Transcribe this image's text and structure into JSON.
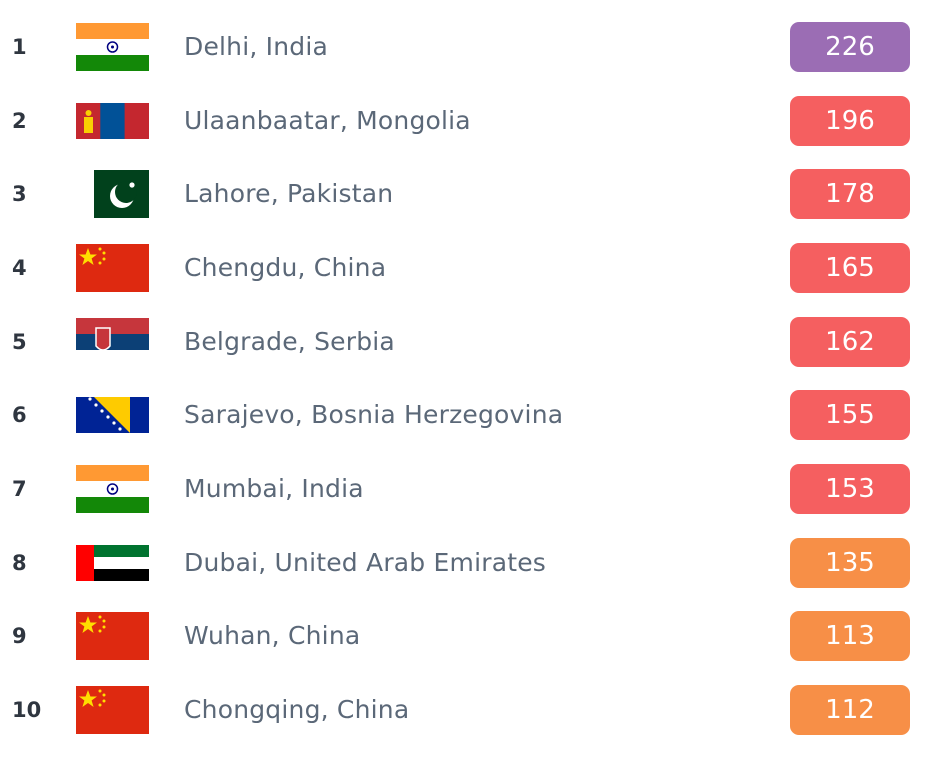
{
  "rows": [
    {
      "rank": "1",
      "flag": "india-flag-icon",
      "city": "Delhi, India",
      "value": "226",
      "level": "purple"
    },
    {
      "rank": "2",
      "flag": "mongolia-flag-icon",
      "city": "Ulaanbaatar, Mongolia",
      "value": "196",
      "level": "red"
    },
    {
      "rank": "3",
      "flag": "pakistan-flag-icon",
      "city": "Lahore, Pakistan",
      "value": "178",
      "level": "red"
    },
    {
      "rank": "4",
      "flag": "china-flag-icon",
      "city": "Chengdu, China",
      "value": "165",
      "level": "red"
    },
    {
      "rank": "5",
      "flag": "serbia-flag-icon",
      "city": "Belgrade, Serbia",
      "value": "162",
      "level": "red"
    },
    {
      "rank": "6",
      "flag": "bosnia-flag-icon",
      "city": "Sarajevo, Bosnia Herzegovina",
      "value": "155",
      "level": "red"
    },
    {
      "rank": "7",
      "flag": "india-flag-icon",
      "city": "Mumbai, India",
      "value": "153",
      "level": "red"
    },
    {
      "rank": "8",
      "flag": "uae-flag-icon",
      "city": "Dubai, United Arab Emirates",
      "value": "135",
      "level": "orange"
    },
    {
      "rank": "9",
      "flag": "china-flag-icon",
      "city": "Wuhan, China",
      "value": "113",
      "level": "orange"
    },
    {
      "rank": "10",
      "flag": "china-flag-icon",
      "city": "Chongqing, China",
      "value": "112",
      "level": "orange"
    }
  ],
  "colors": {
    "purple": "#9b6db4",
    "red": "#f55f60",
    "orange": "#f78f47"
  }
}
